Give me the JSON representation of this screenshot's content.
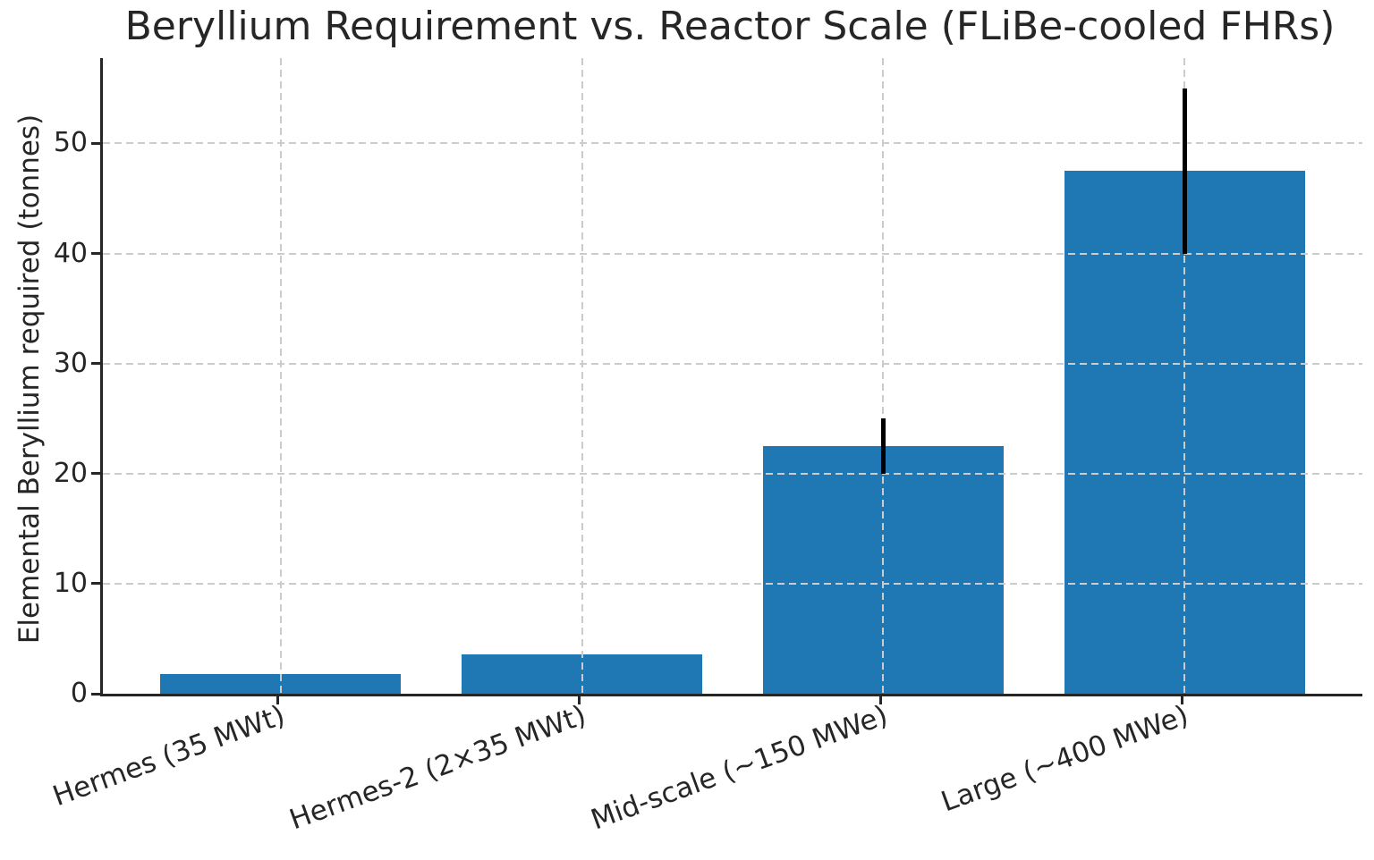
{
  "chart_data": {
    "type": "bar",
    "title": "Beryllium Requirement vs. Reactor Scale (FLiBe-cooled FHRs)",
    "xlabel": "",
    "ylabel": "Elemental Beryllium required (tonnes)",
    "categories": [
      "Hermes (35 MWt)",
      "Hermes-2 (2×35 MWt)",
      "Mid-scale (~150 MWe)",
      "Large (~400 MWe)"
    ],
    "values": [
      1.8,
      3.6,
      22.5,
      47.5
    ],
    "yerr": [
      0,
      0,
      2.5,
      7.5
    ],
    "yticks": [
      0,
      10,
      20,
      30,
      40,
      50
    ],
    "ylim": [
      0,
      57.75
    ],
    "xlim": [
      -0.59,
      3.59
    ],
    "bar_positions": [
      0,
      1,
      2,
      3
    ],
    "bar_width_units": 0.8,
    "xtick_rotation_deg": 20,
    "grid": "dashed, both axes, drawn above bars",
    "legend": null,
    "colors": {
      "bar": "#1f77b4",
      "error_bar": "#000000",
      "grid": "#cccccc",
      "axis": "#262626",
      "text": "#262626",
      "background": "#ffffff"
    }
  }
}
